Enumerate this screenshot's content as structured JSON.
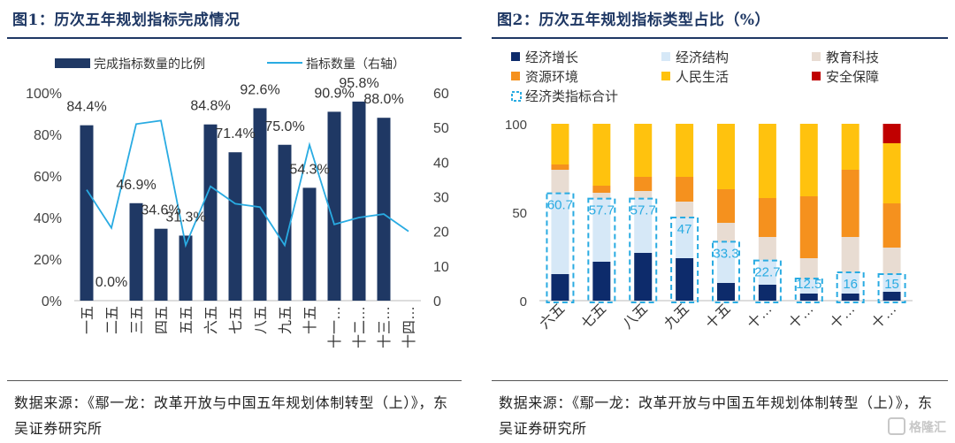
{
  "colors": {
    "title": "#1f3864",
    "bar": "#1f3864",
    "line": "#29abe2",
    "econ_growth": "#0d2b6b",
    "econ_structure": "#d6e8f7",
    "education_tech": "#e8dcd2",
    "resources_env": "#f5911e",
    "livelihood": "#ffc20e",
    "security": "#c00000",
    "econ_total_border": "#29abe2"
  },
  "left": {
    "title": "图1：历次五年规划指标完成情况",
    "source": "数据来源：《鄢一龙：改革开放与中国五年规划体制转型（上）》，东吴证券研究所"
  },
  "right": {
    "title": "图2：历次五年规划指标类型占比（%）",
    "source": "数据来源：《鄢一龙：改革开放与中国五年规划体制转型（上）》，东吴证券研究所"
  },
  "watermark": "格隆汇",
  "chart_data": [
    {
      "type": "bar",
      "title": "图1：历次五年规划指标完成情况",
      "categories": [
        "一五",
        "二五",
        "三五",
        "四五",
        "五五",
        "六五",
        "七五",
        "八五",
        "九五",
        "十五",
        "十一…",
        "十二…",
        "十三…",
        "十四…"
      ],
      "series": [
        {
          "name": "完成指标数量的比例",
          "type": "bar",
          "axis": "left",
          "values": [
            84.4,
            0.0,
            46.9,
            34.6,
            31.3,
            84.8,
            71.4,
            92.6,
            75.0,
            54.3,
            90.9,
            95.8,
            88.0,
            null
          ],
          "labels": [
            "84.4%",
            "0.0%",
            "46.9%",
            "34.6%",
            "31.3%",
            "84.8%",
            "71.4%",
            "92.6%",
            "75.0%",
            "54.3%",
            "90.9%",
            "95.8%",
            "88.0%",
            ""
          ]
        },
        {
          "name": "指标数量（右轴）",
          "type": "line",
          "axis": "right",
          "values": [
            32,
            21,
            51,
            52,
            16,
            33,
            28,
            27,
            16,
            45,
            22,
            24,
            25,
            20
          ]
        }
      ],
      "y_left": {
        "ticks": [
          "0%",
          "20%",
          "40%",
          "60%",
          "80%",
          "100%"
        ],
        "min": 0,
        "max": 100
      },
      "y_right": {
        "ticks": [
          "0",
          "10",
          "20",
          "30",
          "40",
          "50",
          "60"
        ],
        "min": 0,
        "max": 60
      }
    },
    {
      "type": "bar",
      "stacked": true,
      "title": "图2：历次五年规划指标类型占比（%）",
      "categories": [
        "六五",
        "七五",
        "八五",
        "九五",
        "十五",
        "十…",
        "十…",
        "十…",
        "十…"
      ],
      "series": [
        {
          "name": "经济增长",
          "values": [
            15,
            22,
            27,
            24,
            10,
            9,
            4,
            4,
            5
          ]
        },
        {
          "name": "经济结构",
          "values": [
            46,
            36,
            31,
            23,
            23,
            14,
            8,
            12,
            10
          ]
        },
        {
          "name": "教育科技",
          "values": [
            13,
            3,
            4,
            9,
            11,
            13,
            12,
            20,
            15
          ]
        },
        {
          "name": "资源环境",
          "values": [
            3,
            4,
            8,
            14,
            19,
            22,
            35,
            38,
            25
          ]
        },
        {
          "name": "人民生活",
          "values": [
            23,
            35,
            30,
            30,
            37,
            42,
            41,
            26,
            34
          ]
        },
        {
          "name": "安全保障",
          "values": [
            0,
            0,
            0,
            0,
            0,
            0,
            0,
            0,
            11
          ]
        }
      ],
      "total_series": {
        "name": "经济类指标合计",
        "values": [
          60.7,
          57.7,
          57.7,
          47,
          33.3,
          22.7,
          12.5,
          16,
          15
        ],
        "labels": [
          "60.7",
          "57.7",
          "57.7",
          "47",
          "33.3",
          "22.7",
          "12.5",
          "16",
          "15"
        ]
      },
      "y": {
        "ticks": [
          "0",
          "50",
          "100"
        ],
        "min": 0,
        "max": 100
      }
    }
  ]
}
